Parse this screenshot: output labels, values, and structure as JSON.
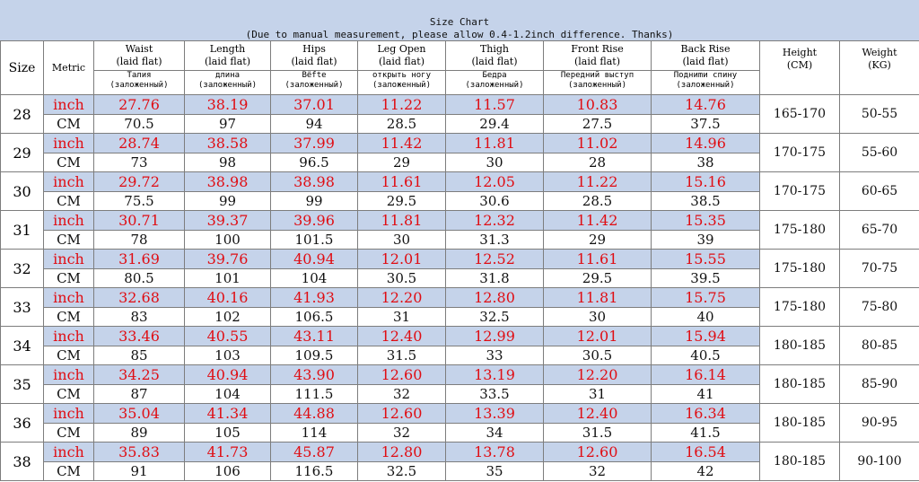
{
  "title": "Size Chart",
  "subtitle": "(Due to manual measurement, please allow 0.4-1.2inch difference. Thanks)",
  "headers": {
    "size": "Size",
    "metric": "Metric",
    "columns": [
      {
        "en": "Waist",
        "sub": "(laid flat)",
        "ru": "Талия",
        "ru_sub": "(заложенный)"
      },
      {
        "en": "Length",
        "sub": "(laid flat)",
        "ru": "длина",
        "ru_sub": "(заложенный)"
      },
      {
        "en": "Hips",
        "sub": "(laid flat)",
        "ru": "Bёfte",
        "ru_sub": "(заложенный)"
      },
      {
        "en": "Leg Open",
        "sub": "(laid flat)",
        "ru": "открыть ногу",
        "ru_sub": "(заложенный)"
      },
      {
        "en": "Thigh",
        "sub": "(laid flat)",
        "ru": "Бедра",
        "ru_sub": "(заложенный)"
      },
      {
        "en": "Front Rise",
        "sub": "(laid flat)",
        "ru": "Передний выступ",
        "ru_sub": "(заложенный)"
      },
      {
        "en": "Back Rise",
        "sub": "(laid flat)",
        "ru": "Подниmи спину",
        "ru_sub": "(заложенный)"
      }
    ],
    "height": "Height",
    "height_unit": "(CM)",
    "weight": "Weight",
    "weight_unit": "(KG)"
  },
  "rows": [
    {
      "size": "28",
      "inch_label": "inch",
      "cm_label": "CM",
      "inch": [
        "27.76",
        "38.19",
        "37.01",
        "11.22",
        "11.57",
        "10.83",
        "14.76"
      ],
      "cm": [
        "70.5",
        "97",
        "94",
        "28.5",
        "29.4",
        "27.5",
        "37.5"
      ],
      "height": "165-170",
      "weight": "50-55"
    },
    {
      "size": "29",
      "inch_label": "inch",
      "cm_label": "CM",
      "inch": [
        "28.74",
        "38.58",
        "37.99",
        "11.42",
        "11.81",
        "11.02",
        "14.96"
      ],
      "cm": [
        "73",
        "98",
        "96.5",
        "29",
        "30",
        "28",
        "38"
      ],
      "height": "170-175",
      "weight": "55-60"
    },
    {
      "size": "30",
      "inch_label": "inch",
      "cm_label": "CM",
      "inch": [
        "29.72",
        "38.98",
        "38.98",
        "11.61",
        "12.05",
        "11.22",
        "15.16"
      ],
      "cm": [
        "75.5",
        "99",
        "99",
        "29.5",
        "30.6",
        "28.5",
        "38.5"
      ],
      "height": "170-175",
      "weight": "60-65"
    },
    {
      "size": "31",
      "inch_label": "inch",
      "cm_label": "CM",
      "inch": [
        "30.71",
        "39.37",
        "39.96",
        "11.81",
        "12.32",
        "11.42",
        "15.35"
      ],
      "cm": [
        "78",
        "100",
        "101.5",
        "30",
        "31.3",
        "29",
        "39"
      ],
      "height": "175-180",
      "weight": "65-70"
    },
    {
      "size": "32",
      "inch_label": "inch",
      "cm_label": "CM",
      "inch": [
        "31.69",
        "39.76",
        "40.94",
        "12.01",
        "12.52",
        "11.61",
        "15.55"
      ],
      "cm": [
        "80.5",
        "101",
        "104",
        "30.5",
        "31.8",
        "29.5",
        "39.5"
      ],
      "height": "175-180",
      "weight": "70-75"
    },
    {
      "size": "33",
      "inch_label": "inch",
      "cm_label": "CM",
      "inch": [
        "32.68",
        "40.16",
        "41.93",
        "12.20",
        "12.80",
        "11.81",
        "15.75"
      ],
      "cm": [
        "83",
        "102",
        "106.5",
        "31",
        "32.5",
        "30",
        "40"
      ],
      "height": "175-180",
      "weight": "75-80"
    },
    {
      "size": "34",
      "inch_label": "inch",
      "cm_label": "CM",
      "inch": [
        "33.46",
        "40.55",
        "43.11",
        "12.40",
        "12.99",
        "12.01",
        "15.94"
      ],
      "cm": [
        "85",
        "103",
        "109.5",
        "31.5",
        "33",
        "30.5",
        "40.5"
      ],
      "height": "180-185",
      "weight": "80-85"
    },
    {
      "size": "35",
      "inch_label": "inch",
      "cm_label": "CM",
      "inch": [
        "34.25",
        "40.94",
        "43.90",
        "12.60",
        "13.19",
        "12.20",
        "16.14"
      ],
      "cm": [
        "87",
        "104",
        "111.5",
        "32",
        "33.5",
        "31",
        "41"
      ],
      "height": "180-185",
      "weight": "85-90"
    },
    {
      "size": "36",
      "inch_label": "inch",
      "cm_label": "CM",
      "inch": [
        "35.04",
        "41.34",
        "44.88",
        "12.60",
        "13.39",
        "12.40",
        "16.34"
      ],
      "cm": [
        "89",
        "105",
        "114",
        "32",
        "34",
        "31.5",
        "41.5"
      ],
      "height": "180-185",
      "weight": "90-95"
    },
    {
      "size": "38",
      "inch_label": "inch",
      "cm_label": "CM",
      "inch": [
        "35.83",
        "41.73",
        "45.87",
        "12.80",
        "13.78",
        "12.60",
        "16.54"
      ],
      "cm": [
        "91",
        "106",
        "116.5",
        "32.5",
        "35",
        "32",
        "42"
      ],
      "height": "180-185",
      "weight": "90-100"
    }
  ],
  "colors": {
    "band": "#c5d3ea",
    "inch_text": "#e00d13",
    "cm_text": "#111111",
    "grid": "#7d7d7d"
  }
}
